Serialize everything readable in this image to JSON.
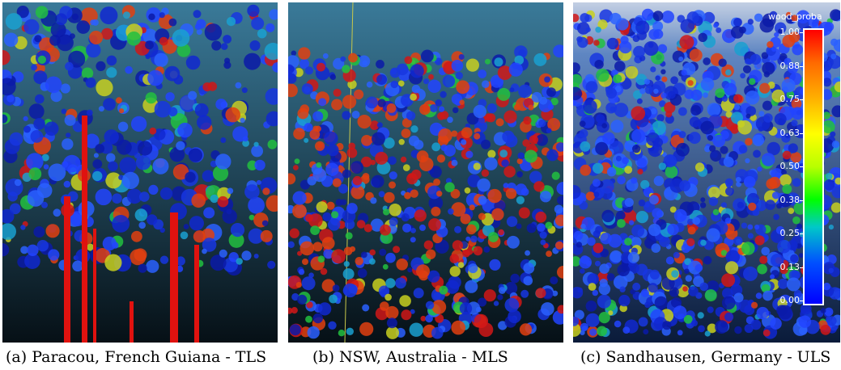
{
  "panels": [
    {
      "id": "a",
      "caption": "(a) Paracou, French Guiana - TLS"
    },
    {
      "id": "b",
      "caption": "(b) NSW, Australia - MLS"
    },
    {
      "id": "c",
      "caption": "(c) Sandhausen, Germany - ULS"
    }
  ],
  "colorbar": {
    "title": "wood_proba",
    "ticks": [
      "1.00",
      "0.88",
      "0.75",
      "0.63",
      "0.50",
      "0.38",
      "0.25",
      "0.13",
      "0.00"
    ],
    "colors": {
      "high": "#ff0000",
      "mid": "#ffff00",
      "low": "#0000ff"
    }
  }
}
